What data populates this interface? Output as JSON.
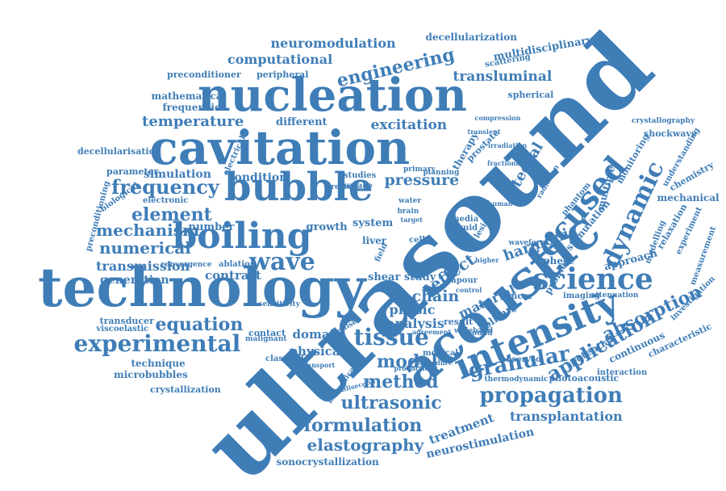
{
  "title": "",
  "color": "#3f7db7",
  "words": [
    "ultrasound",
    "acoustic",
    "technology",
    "cavitation",
    "nucleation",
    "bubble",
    "boiling",
    "intensity",
    "science",
    "focused",
    "dynamic",
    "wave",
    "tissue",
    "experimental",
    "propagation",
    "granular",
    "application",
    "absorption",
    "engineering",
    "frequency",
    "element",
    "mechanism",
    "numerical",
    "temperature",
    "equation",
    "model",
    "method",
    "ultrasonic",
    "formulation",
    "elastography",
    "computational",
    "neuromodulation",
    "transluminal",
    "multidisciplinary",
    "decellularization",
    "excitation",
    "pressure",
    "chain",
    "analysis",
    "physic",
    "effect",
    "integral",
    "harmonic",
    "transmission",
    "generation",
    "contrast",
    "simulation",
    "condition",
    "different",
    "mathematical",
    "frequencies",
    "preconditioner",
    "peripheral",
    "spherical",
    "scattering",
    "therapy",
    "prostate",
    "multiple",
    "monitoring",
    "shockwave",
    "crystallography",
    "decellularisation",
    "parameter",
    "electronic",
    "preconditioning",
    "biological",
    "growth",
    "system",
    "number",
    "transducer",
    "viscoelastic",
    "technique",
    "microbubbles",
    "crystallization",
    "sonocrystallization",
    "neurostimulation",
    "treatment",
    "transplantation",
    "physical",
    "domain",
    "contact",
    "shear study",
    "material",
    "solitary",
    "sphere",
    "approach",
    "mechanical",
    "chemistry",
    "understanding",
    "relaxation",
    "experiment",
    "measurement",
    "investigation",
    "characteristic",
    "continuous",
    "potential",
    "interaction",
    "imaging",
    "attenuation",
    "cancer",
    "observed",
    "photoacoustic",
    "thermodynamic",
    "stimulation",
    "problem",
    "phantom",
    "radiation",
    "modelling",
    "result",
    "wideband",
    "sound",
    "medical",
    "classical",
    "malignant",
    "sensitivity",
    "ablation",
    "convergence",
    "electrical",
    "studies",
    "surface",
    "primary",
    "planning",
    "vapour",
    "liver",
    "cell",
    "media",
    "liquid",
    "field",
    "lesion",
    "present",
    "water",
    "brain",
    "human",
    "control",
    "target",
    "impulse",
    "biomedical",
    "millisecond",
    "production",
    "procedure",
    "transport",
    "agreement",
    "higher",
    "waveform",
    "fractional",
    "irradiation",
    "compression",
    "transient"
  ],
  "colors": {
    "primary": "#3f7db7",
    "background": "#ffffff"
  }
}
